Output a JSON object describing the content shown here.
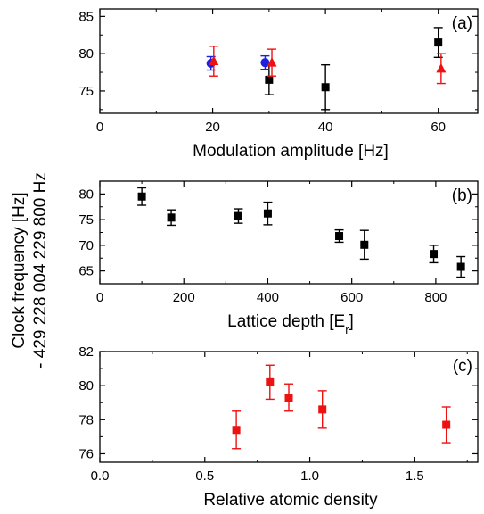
{
  "figure": {
    "shared_ylabel_line1": "Clock frequency [Hz]",
    "shared_ylabel_line2": "- 429 228 004 229 800 Hz"
  },
  "chart_data": [
    {
      "type": "scatter",
      "panel_label": "(a)",
      "title": "",
      "xlabel": "Modulation amplitude [Hz]",
      "ylabel": "",
      "xlim": [
        0,
        67
      ],
      "ylim": [
        72,
        86
      ],
      "xticks": [
        0,
        20,
        40,
        60
      ],
      "yticks": [
        75,
        80,
        85
      ],
      "grid": false,
      "series": [
        {
          "marker": "square",
          "color": "#000000",
          "points": [
            {
              "x": 30,
              "y": 76.5,
              "err": 2.0
            },
            {
              "x": 40,
              "y": 75.5,
              "err": 3.0
            },
            {
              "x": 60,
              "y": 81.5,
              "err": 2.0
            }
          ]
        },
        {
          "marker": "circle",
          "color": "#1f1fe0",
          "points": [
            {
              "x": 19.7,
              "y": 78.7,
              "err": 0.9
            },
            {
              "x": 29.3,
              "y": 78.8,
              "err": 0.9
            }
          ]
        },
        {
          "marker": "triangle",
          "color": "#ee1111",
          "points": [
            {
              "x": 20.2,
              "y": 79.0,
              "err": 2.0
            },
            {
              "x": 30.5,
              "y": 78.8,
              "err": 1.8
            },
            {
              "x": 60.5,
              "y": 78.0,
              "err": 2.0
            }
          ]
        }
      ]
    },
    {
      "type": "scatter",
      "panel_label": "(b)",
      "title": "",
      "xlabel": "Lattice depth [E",
      "xlabel_sub": "r",
      "xlabel_tail": "]",
      "ylabel": "",
      "xlim": [
        0,
        900
      ],
      "ylim": [
        62.5,
        82.5
      ],
      "xticks": [
        0,
        200,
        400,
        600,
        800
      ],
      "yticks": [
        65,
        70,
        75,
        80
      ],
      "grid": false,
      "series": [
        {
          "marker": "square",
          "color": "#000000",
          "points": [
            {
              "x": 100,
              "y": 79.5,
              "err": 1.7
            },
            {
              "x": 170,
              "y": 75.4,
              "err": 1.5
            },
            {
              "x": 330,
              "y": 75.7,
              "err": 1.4
            },
            {
              "x": 400,
              "y": 76.2,
              "err": 2.2
            },
            {
              "x": 570,
              "y": 71.8,
              "err": 1.2
            },
            {
              "x": 630,
              "y": 70.1,
              "err": 2.8
            },
            {
              "x": 795,
              "y": 68.3,
              "err": 1.7
            },
            {
              "x": 860,
              "y": 65.8,
              "err": 2.0
            }
          ]
        }
      ]
    },
    {
      "type": "scatter",
      "panel_label": "(c)",
      "title": "",
      "xlabel": "Relative atomic density",
      "ylabel": "",
      "xlim": [
        0,
        1.8
      ],
      "ylim": [
        75.5,
        82
      ],
      "xticks": [
        0.0,
        0.5,
        1.0,
        1.5
      ],
      "xtick_labels": [
        "0.0",
        "0.5",
        "1.0",
        "1.5"
      ],
      "yticks": [
        76,
        78,
        80,
        82
      ],
      "grid": false,
      "series": [
        {
          "marker": "square",
          "color": "#ee1111",
          "points": [
            {
              "x": 0.65,
              "y": 77.4,
              "err": 1.1
            },
            {
              "x": 0.81,
              "y": 80.2,
              "err": 1.0
            },
            {
              "x": 0.9,
              "y": 79.3,
              "err": 0.8
            },
            {
              "x": 1.06,
              "y": 78.6,
              "err": 1.1
            },
            {
              "x": 1.65,
              "y": 77.7,
              "err": 1.05
            }
          ]
        }
      ]
    }
  ]
}
